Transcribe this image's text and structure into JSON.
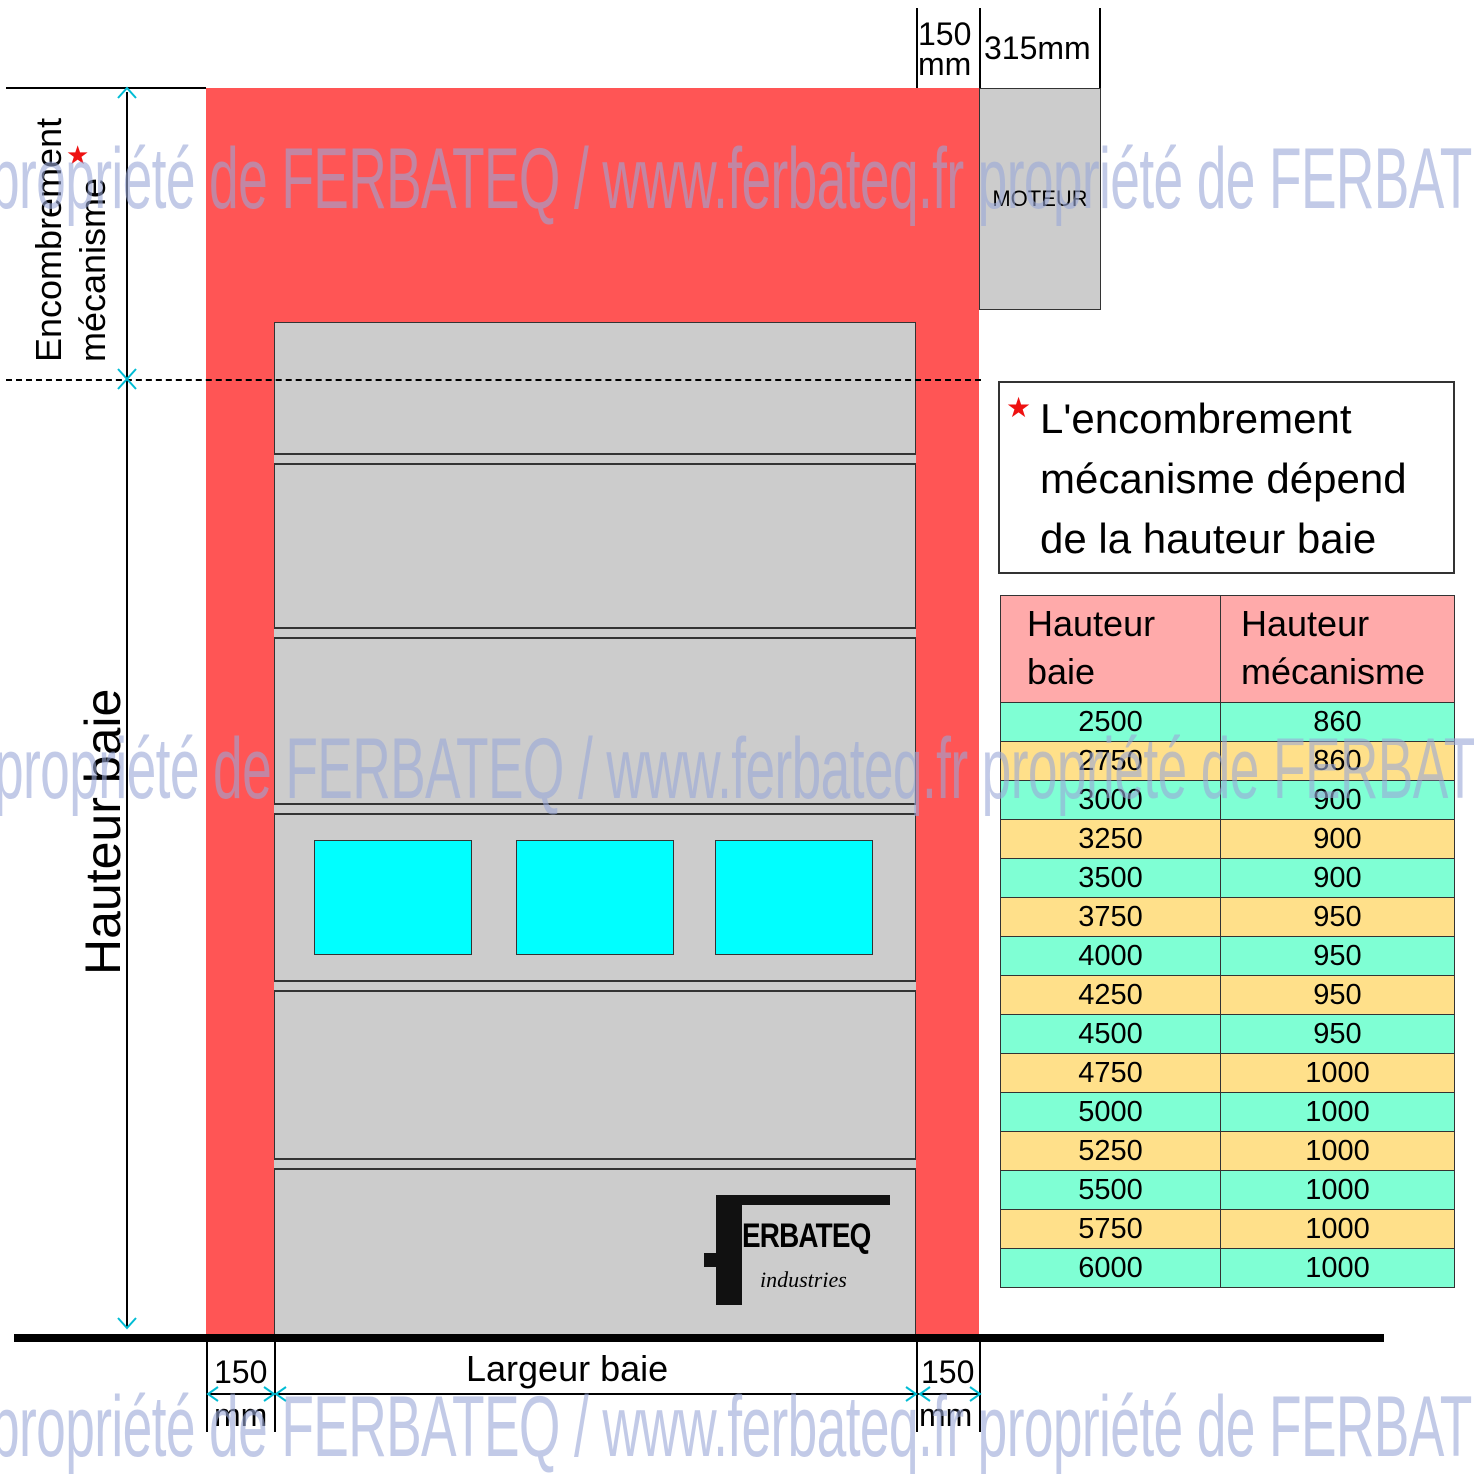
{
  "labels": {
    "motor": "MOTEUR",
    "top_150": "150",
    "top_mm": "mm",
    "top_315": "315mm",
    "encombrement_line1": "Encombrement",
    "encombrement_line2": "mécanisme",
    "hauteur_baie": "Hauteur baie",
    "largeur_baie": "Largeur baie",
    "bottom_left_150": "150",
    "bottom_left_mm": "mm",
    "bottom_right_150": "150",
    "bottom_right_mm": "mm",
    "star": "★"
  },
  "note": {
    "line1": "L'encombrement",
    "line2": "mécanisme dépend",
    "line3": "de la hauteur baie"
  },
  "logo": {
    "brand": "ERBATEQ",
    "sub": "industries"
  },
  "watermark": {
    "text": "propriété de FERBATEQ / www.ferbateq.fr  propriété de FERBATEQ / www.ferbateq.fr"
  },
  "table": {
    "headers": [
      {
        "line1": "Hauteur",
        "line2": "baie"
      },
      {
        "line1": "Hauteur",
        "line2": "mécanisme"
      }
    ],
    "rows": [
      [
        "2500",
        "860"
      ],
      [
        "2750",
        "860"
      ],
      [
        "3000",
        "900"
      ],
      [
        "3250",
        "900"
      ],
      [
        "3500",
        "900"
      ],
      [
        "3750",
        "950"
      ],
      [
        "4000",
        "950"
      ],
      [
        "4250",
        "950"
      ],
      [
        "4500",
        "950"
      ],
      [
        "4750",
        "1000"
      ],
      [
        "5000",
        "1000"
      ],
      [
        "5250",
        "1000"
      ],
      [
        "5500",
        "1000"
      ],
      [
        "5750",
        "1000"
      ],
      [
        "6000",
        "1000"
      ]
    ]
  },
  "colors": {
    "frame": "#ff5555",
    "panel": "#cccccc",
    "window": "#00ffff",
    "row_a": "#7fffd4",
    "row_b": "#ffe08a",
    "header": "#ffaaaa",
    "dimension_arrow": "#00bcd4"
  }
}
